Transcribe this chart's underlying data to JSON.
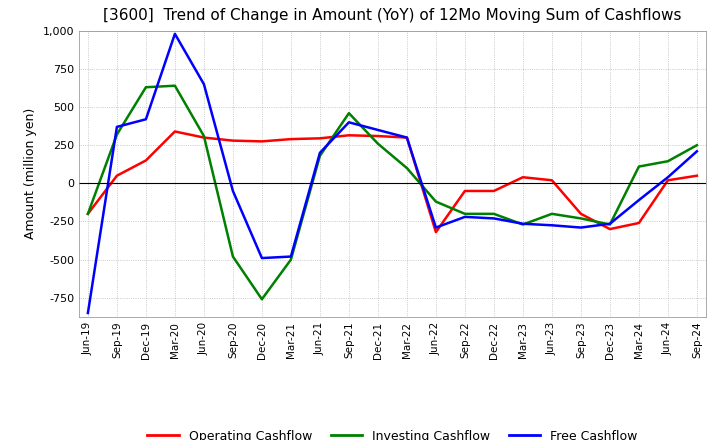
{
  "title": "[3600]  Trend of Change in Amount (YoY) of 12Mo Moving Sum of Cashflows",
  "ylabel": "Amount (million yen)",
  "ylim": [
    -875,
    1000
  ],
  "yticks": [
    -750,
    -500,
    -250,
    0,
    250,
    500,
    750,
    1000
  ],
  "categories": [
    "Jun-19",
    "Sep-19",
    "Dec-19",
    "Mar-20",
    "Jun-20",
    "Sep-20",
    "Dec-20",
    "Mar-21",
    "Jun-21",
    "Sep-21",
    "Dec-21",
    "Mar-22",
    "Jun-22",
    "Sep-22",
    "Dec-22",
    "Mar-23",
    "Jun-23",
    "Sep-23",
    "Dec-23",
    "Mar-24",
    "Jun-24",
    "Sep-24"
  ],
  "operating": [
    -200,
    50,
    150,
    340,
    300,
    280,
    275,
    290,
    295,
    315,
    310,
    300,
    -320,
    -50,
    -50,
    40,
    20,
    -200,
    -300,
    -260,
    20,
    50
  ],
  "investing": [
    -200,
    320,
    630,
    640,
    310,
    -480,
    -760,
    -500,
    180,
    460,
    260,
    100,
    -120,
    -200,
    -200,
    -270,
    -200,
    -230,
    -270,
    110,
    145,
    250
  ],
  "free": [
    -850,
    370,
    420,
    980,
    650,
    -50,
    -490,
    -480,
    200,
    400,
    350,
    300,
    -290,
    -220,
    -230,
    -265,
    -275,
    -290,
    -265,
    -110,
    40,
    210
  ],
  "operating_color": "#ff0000",
  "investing_color": "#008000",
  "free_color": "#0000ff",
  "background_color": "#ffffff",
  "grid_color": "#aaaaaa",
  "title_fontsize": 11,
  "legend_labels": [
    "Operating Cashflow",
    "Investing Cashflow",
    "Free Cashflow"
  ]
}
